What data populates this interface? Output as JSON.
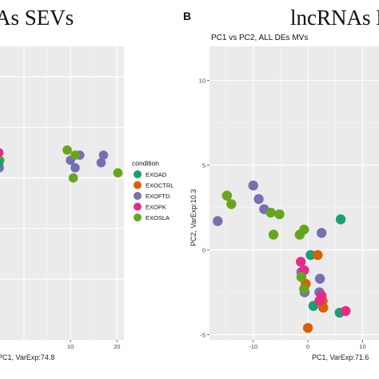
{
  "figure": {
    "left_title": "As SEVs",
    "panel_letter": "B",
    "right_title": "lncRNAs LV"
  },
  "legend": {
    "title": "condition",
    "items": [
      {
        "label": "EXOAD",
        "color": "#1b9e77"
      },
      {
        "label": "EXOCTRL",
        "color": "#d95f02"
      },
      {
        "label": "EXOFTD",
        "color": "#7570b3"
      },
      {
        "label": "EXOPK",
        "color": "#e7298a"
      },
      {
        "label": "EXOSLA",
        "color": "#66a61e"
      }
    ]
  },
  "chart_data": [
    {
      "type": "scatter",
      "title": "",
      "xlabel": "PC1, VarExp:74.8",
      "ylabel": "",
      "xlim": [
        -5.5,
        21.5
      ],
      "ylim": [
        -3.2,
        2.6
      ],
      "x_ticks": [
        10,
        20
      ],
      "grid": true,
      "series": [
        {
          "name": "EXOFTD",
          "points": [
            [
              -5.3,
              0.2
            ],
            [
              10.0,
              0.35
            ],
            [
              11.0,
              0.2
            ],
            [
              12.0,
              0.45
            ],
            [
              16.6,
              0.3
            ],
            [
              17.1,
              0.45
            ]
          ]
        },
        {
          "name": "EXOSLA",
          "points": [
            [
              -5.2,
              0.35
            ],
            [
              9.3,
              0.55
            ],
            [
              11.0,
              0.45
            ],
            [
              10.6,
              0.0
            ],
            [
              20.2,
              0.1
            ]
          ]
        },
        {
          "name": "EXOPK",
          "points": [
            [
              -5.4,
              0.5
            ]
          ]
        },
        {
          "name": "EXOAD",
          "points": [
            [
              -5.4,
              0.3
            ]
          ]
        }
      ]
    },
    {
      "type": "scatter",
      "title": "PC1 vs PC2, ALL DEs MVs",
      "xlabel": "PC1, VarExp:71.6",
      "ylabel": "PC2, VarExp:10.3",
      "xlim": [
        -18,
        13
      ],
      "ylim": [
        -5.3,
        12
      ],
      "x_ticks": [
        -10,
        0,
        10
      ],
      "y_ticks": [
        -5,
        0,
        5,
        10
      ],
      "grid": true,
      "series": [
        {
          "name": "EXOAD",
          "values": [
            [
              6.0,
              1.8
            ],
            [
              0.5,
              -0.3
            ],
            [
              1.0,
              -3.3
            ],
            [
              5.8,
              -3.7
            ]
          ]
        },
        {
          "name": "EXOCTRL",
          "values": [
            [
              1.8,
              -0.3
            ],
            [
              -0.4,
              -2.0
            ],
            [
              2.7,
              -3.0
            ],
            [
              2.8,
              -3.4
            ],
            [
              0.0,
              -4.6
            ]
          ]
        },
        {
          "name": "EXOFTD",
          "values": [
            [
              -16.5,
              1.7
            ],
            [
              -10.0,
              3.8
            ],
            [
              -9.0,
              3.0
            ],
            [
              -8.0,
              2.4
            ],
            [
              2.5,
              1.0
            ],
            [
              2.2,
              -1.7
            ],
            [
              -1.2,
              -1.3
            ],
            [
              -0.6,
              -2.5
            ],
            [
              2.1,
              -2.5
            ]
          ]
        },
        {
          "name": "EXOPK",
          "values": [
            [
              -1.3,
              -0.7
            ],
            [
              -0.7,
              -1.2
            ],
            [
              2.5,
              -2.7
            ],
            [
              2.1,
              -3.0
            ],
            [
              6.9,
              -3.6
            ]
          ]
        },
        {
          "name": "EXOSLA",
          "values": [
            [
              -14.8,
              3.2
            ],
            [
              -14.0,
              2.7
            ],
            [
              -6.8,
              2.2
            ],
            [
              -5.2,
              2.1
            ],
            [
              -6.3,
              0.9
            ],
            [
              -1.5,
              0.9
            ],
            [
              -0.7,
              1.2
            ],
            [
              -1.2,
              -1.6
            ],
            [
              -0.7,
              -2.3
            ]
          ]
        }
      ]
    }
  ]
}
